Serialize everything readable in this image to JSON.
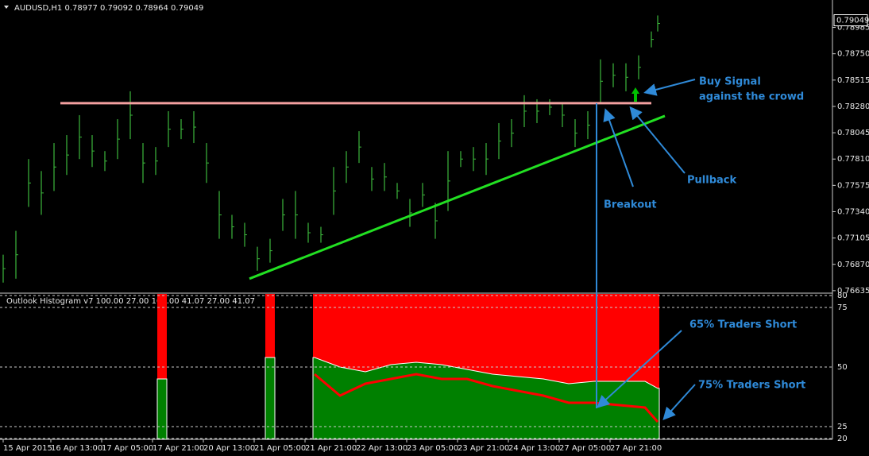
{
  "chart_data": [
    {
      "type": "hl_bar",
      "title": "AUDUSD,H1  0.78977 0.79092 0.78964 0.79049",
      "color": "#3cb83c",
      "x": [
        0,
        4,
        8,
        12,
        16,
        20,
        24,
        28,
        32,
        36,
        40,
        44,
        48,
        52,
        56,
        60,
        64,
        68,
        72,
        76,
        80,
        84,
        88,
        92,
        96,
        100,
        104,
        108,
        112,
        116,
        120,
        124,
        128,
        132,
        136,
        140,
        144,
        148,
        152,
        156,
        160,
        164,
        168,
        172,
        176,
        180,
        184,
        188,
        192,
        196,
        200,
        204,
        206
      ],
      "high": [
        0.76956,
        0.77169,
        0.7781,
        0.77703,
        0.77953,
        0.78024,
        0.78202,
        0.78024,
        0.77881,
        0.78166,
        0.78415,
        0.77953,
        0.77917,
        0.78237,
        0.78166,
        0.78237,
        0.77953,
        0.77525,
        0.77312,
        0.77241,
        0.77027,
        0.77098,
        0.77454,
        0.77525,
        0.77241,
        0.77205,
        0.77739,
        0.77881,
        0.78059,
        0.77739,
        0.77775,
        0.77597,
        0.77454,
        0.77597,
        0.77419,
        0.77881,
        0.77881,
        0.77917,
        0.77953,
        0.78131,
        0.78166,
        0.7838,
        0.78344,
        0.78344,
        0.78309,
        0.78166,
        0.78237,
        0.787,
        0.78665,
        0.78665,
        0.78736,
        0.78949,
        0.79092
      ],
      "low": [
        0.76707,
        0.76742,
        0.77383,
        0.77312,
        0.77525,
        0.77668,
        0.7781,
        0.77739,
        0.77703,
        0.7781,
        0.77988,
        0.77597,
        0.77668,
        0.77917,
        0.77988,
        0.77953,
        0.77597,
        0.77098,
        0.77098,
        0.77027,
        0.76813,
        0.76885,
        0.77169,
        0.77098,
        0.77063,
        0.77063,
        0.77312,
        0.77597,
        0.77775,
        0.77525,
        0.77525,
        0.77454,
        0.77205,
        0.77383,
        0.77098,
        0.77347,
        0.77739,
        0.77703,
        0.77668,
        0.7781,
        0.77917,
        0.78095,
        0.78131,
        0.78202,
        0.78095,
        0.77917,
        0.77988,
        0.78309,
        0.78451,
        0.78415,
        0.78522,
        0.78807,
        0.78949
      ],
      "xlim": [
        -1,
        261
      ],
      "ylim": [
        0.7662,
        0.7923
      ],
      "yticks": [
        0.78985,
        {
          "value": 0.7875,
          "label": "0.78750"
        },
        0.78515,
        {
          "value": 0.7828,
          "label": "0.78280"
        },
        0.78045,
        {
          "value": 0.7781,
          "label": "0.77810"
        },
        0.77575,
        {
          "value": 0.7734,
          "label": "0.77340"
        },
        0.77105,
        {
          "value": 0.7687,
          "label": "0.76870"
        },
        0.76635
      ],
      "last_price": 0.79049,
      "resistance": {
        "x": [
          18,
          204
        ],
        "value": 0.78309,
        "color": "#f4a0a0"
      },
      "trendline": {
        "x": [
          77.5,
          208.25
        ],
        "values": [
          0.76742,
          0.78195
        ],
        "color": "#22e022"
      },
      "annotations": [
        "Buy Signal",
        "against the crowd",
        "Pullback",
        "Breakout"
      ]
    },
    {
      "type": "histogram_area",
      "title": "Outlook Histogram v7 100.00 27.00 100.00 41.07 27.00 41.07",
      "x": [
        49,
        51,
        52,
        83,
        85,
        86,
        98,
        106,
        114,
        122,
        130,
        138,
        146,
        154,
        162,
        170,
        178,
        186,
        194,
        202,
        206
      ],
      "series": [
        {
          "color": "#008000",
          "values": [
            45,
            45,
            null,
            54,
            54,
            null,
            54,
            50,
            48,
            51,
            52,
            51,
            49,
            47,
            46,
            45,
            43,
            44,
            44,
            44,
            41.07
          ]
        },
        {
          "color": "#ff0000",
          "values": [
            null,
            null,
            null,
            null,
            null,
            null,
            47,
            38,
            43,
            45,
            47,
            45,
            45,
            42,
            40,
            38,
            35,
            35,
            34,
            33,
            27
          ]
        }
      ],
      "background_color": "#ff0000",
      "xlim": [
        -1,
        261
      ],
      "ylim": [
        20,
        80
      ],
      "yticks": [
        80,
        75,
        50,
        25,
        20
      ],
      "xticks": [
        {
          "value": 0,
          "label": "15 Apr 2015"
        },
        {
          "value": 15,
          "label": "16 Apr 13:00"
        },
        {
          "value": 31,
          "label": "17 Apr 05:00"
        },
        {
          "value": 47,
          "label": "17 Apr 21:00"
        },
        {
          "value": 63,
          "label": "20 Apr 13:00"
        },
        {
          "value": 79,
          "label": "21 Apr 05:00"
        },
        {
          "value": 95,
          "label": "21 Apr 21:00"
        },
        {
          "value": 111,
          "label": "22 Apr 13:00"
        },
        {
          "value": 127,
          "label": "23 Apr 05:00"
        },
        {
          "value": 143,
          "label": "23 Apr 21:00"
        },
        {
          "value": 159,
          "label": "24 Apr 13:00"
        },
        {
          "value": 175,
          "label": "27 Apr 05:00"
        },
        {
          "value": 191,
          "label": "27 Apr 21:00"
        }
      ],
      "annotations": [
        "65% Traders Short",
        "75% Traders Short"
      ]
    }
  ]
}
